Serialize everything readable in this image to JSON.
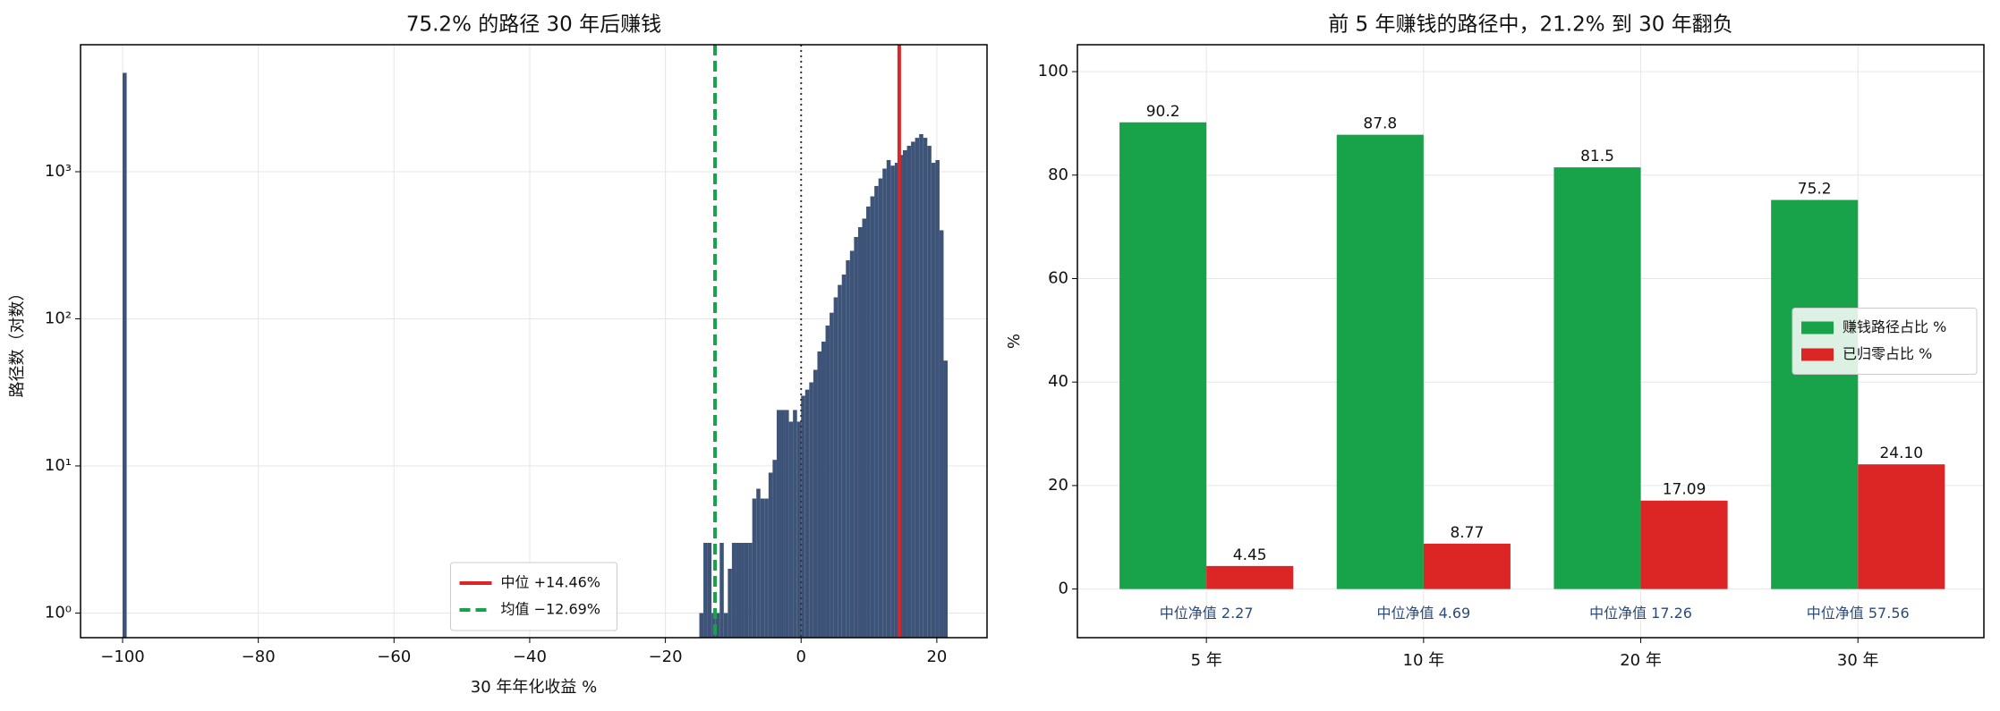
{
  "chart_data": [
    {
      "type": "histogram",
      "title": "75.2% 的路径 30 年后赚钱",
      "xlabel": "30 年年化收益 %",
      "ylabel": "路径数（对数）",
      "bins": [
        -100,
        -99.4,
        -15,
        -14.4,
        -13.8,
        -13.2,
        -12.6,
        -12,
        -11.4,
        -10.8,
        -10.2,
        -9.6,
        -9,
        -8.4,
        -7.8,
        -7.2,
        -6.6,
        -6,
        -5.4,
        -4.8,
        -4.2,
        -3.6,
        -3,
        -2.4,
        -1.8,
        -1.2,
        -0.6,
        0,
        0.6,
        1.2,
        1.8,
        2.4,
        3,
        3.6,
        4.2,
        4.8,
        5.4,
        6,
        6.6,
        7.2,
        7.8,
        8.4,
        9,
        9.6,
        10.2,
        10.8,
        11.4,
        12,
        12.6,
        13.2,
        13.8,
        14.4,
        15,
        15.6,
        16.2,
        16.8,
        17.4,
        18,
        18.6,
        19.2,
        19.8,
        20.4,
        21,
        21.6
      ],
      "counts": [
        4700,
        0,
        1,
        3,
        3,
        1,
        1,
        3,
        1,
        2,
        3,
        3,
        3,
        3,
        3,
        6,
        7,
        6,
        6,
        9,
        11,
        24,
        24,
        24,
        20,
        24,
        20,
        30,
        33,
        37,
        45,
        60,
        70,
        90,
        110,
        140,
        170,
        200,
        250,
        290,
        360,
        420,
        480,
        580,
        680,
        800,
        900,
        1050,
        1200,
        1100,
        1150,
        1300,
        1400,
        1500,
        1600,
        1700,
        1800,
        1700,
        1500,
        1150,
        1200,
        400,
        52
      ],
      "color": "#3d5478",
      "log_y": true,
      "grid": true,
      "legend": "lower center",
      "xlim": [
        -106.2,
        27.4
      ],
      "ylim": [
        0.68,
        7300
      ],
      "xticks": [
        {
          "value": -100,
          "label": "−100"
        },
        {
          "value": -80,
          "label": "−80"
        },
        {
          "value": -60,
          "label": "−60"
        },
        {
          "value": -40,
          "label": "−40"
        },
        {
          "value": -20,
          "label": "−20"
        },
        0,
        20
      ],
      "yticks": [
        {
          "value": 1,
          "label": "10⁰"
        },
        {
          "value": 10,
          "label": "10¹"
        },
        {
          "value": 100,
          "label": "10²"
        },
        {
          "value": 1000,
          "label": "10³"
        }
      ],
      "vlines": [
        {
          "value": 14.46,
          "label": "中位 +14.46%",
          "color": "#dc2626",
          "style": "solid"
        },
        {
          "value": -12.69,
          "label": "均值 −12.69%",
          "color": "#18a34a",
          "style": "dashed"
        },
        {
          "value": 0,
          "color": "#333333",
          "style": "dotted"
        }
      ]
    },
    {
      "type": "bar",
      "title": "前 5 年赚钱的路径中，21.2% 到 30 年翻负",
      "ylabel": "%",
      "categories": [
        "5 年",
        "10 年",
        "20 年",
        "30 年"
      ],
      "series": [
        {
          "name": "赚钱路径占比 %",
          "color": "#18a34a",
          "values": [
            90.2,
            87.8,
            81.5,
            75.2
          ]
        },
        {
          "name": "已归零占比 %",
          "color": "#dc2626",
          "values": [
            4.45,
            8.77,
            17.09,
            24.1
          ],
          "value_labels": [
            "4.45",
            "8.77",
            "17.09",
            "24.10"
          ]
        }
      ],
      "annotations": [
        "中位净值 2.27",
        "中位净值 4.69",
        "中位净值 17.26",
        "中位净值 57.56"
      ],
      "ylim": [
        -9.4,
        105.2
      ],
      "yticks": [
        0,
        20,
        40,
        60,
        80,
        100
      ],
      "grid": true,
      "legend": "center right"
    }
  ]
}
